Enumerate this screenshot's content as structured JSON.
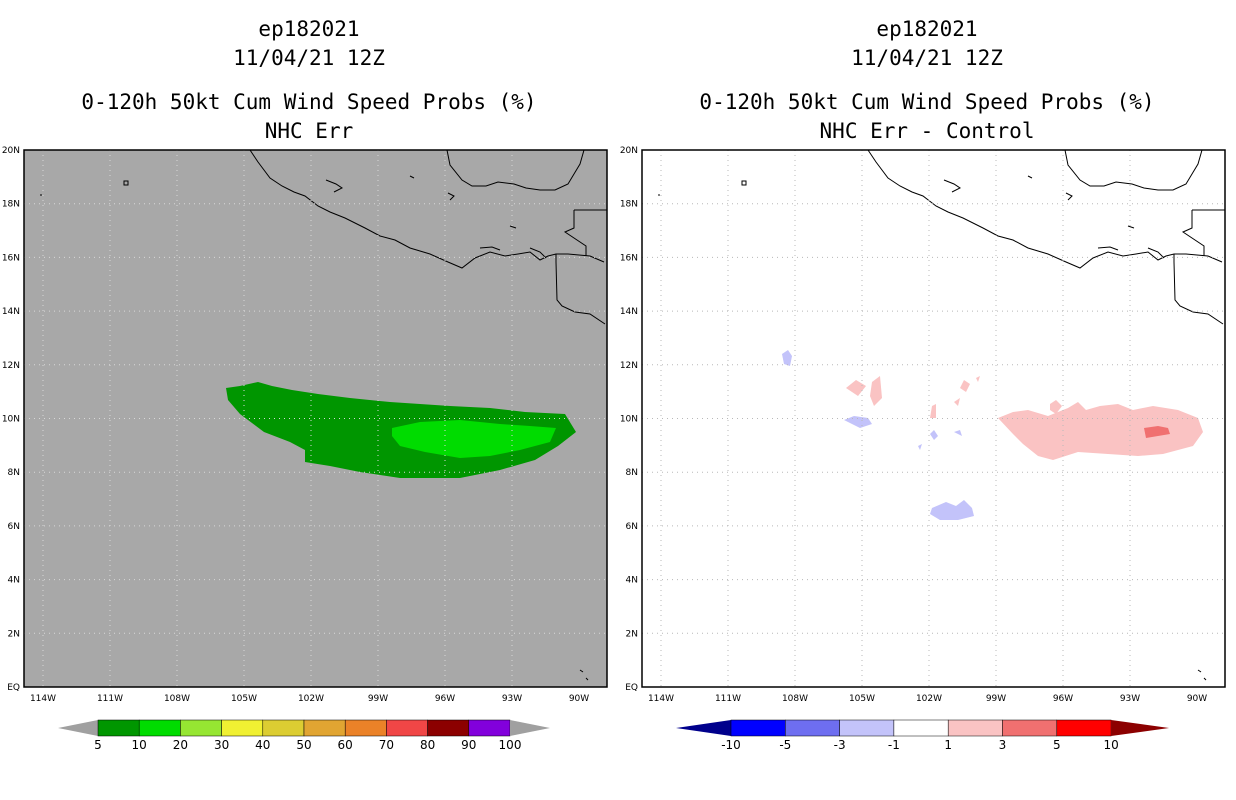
{
  "panels": [
    {
      "id": "left",
      "storm_id": "ep182021",
      "datetime": "11/04/21 12Z",
      "product": "0-120h 50kt Cum Wind Speed Probs (%)",
      "subtitle": "NHC Err",
      "background": "#a8a8a8"
    },
    {
      "id": "right",
      "storm_id": "ep182021",
      "datetime": "11/04/21 12Z",
      "product": "0-120h 50kt Cum Wind Speed Probs (%)",
      "subtitle": "NHC Err - Control",
      "background": "#ffffff"
    }
  ],
  "map": {
    "lat_labels": [
      "EQ",
      "2N",
      "4N",
      "6N",
      "8N",
      "10N",
      "12N",
      "14N",
      "16N",
      "18N",
      "20N"
    ],
    "lon_labels": [
      "114W",
      "111W",
      "108W",
      "105W",
      "102W",
      "99W",
      "96W",
      "93W",
      "90W"
    ]
  },
  "legend_left": {
    "labels": [
      "5",
      "10",
      "20",
      "30",
      "40",
      "50",
      "60",
      "70",
      "80",
      "90",
      "100"
    ],
    "colors": [
      "#009600",
      "#00dc00",
      "#96e632",
      "#f0f032",
      "#dccd32",
      "#e1a532",
      "#eb8228",
      "#f04646",
      "#8c0000",
      "#8200dc"
    ],
    "end_color": "#a0a0a0"
  },
  "legend_right": {
    "labels": [
      "-10",
      "-5",
      "-3",
      "-1",
      "1",
      "3",
      "5",
      "10"
    ],
    "colors": [
      "#0000ff",
      "#6e6ef0",
      "#c3c3fa",
      "#ffffff",
      "#fac3c3",
      "#f07070",
      "#ff0000"
    ],
    "low_end_color": "#00008c",
    "high_end_color": "#8c0000"
  }
}
